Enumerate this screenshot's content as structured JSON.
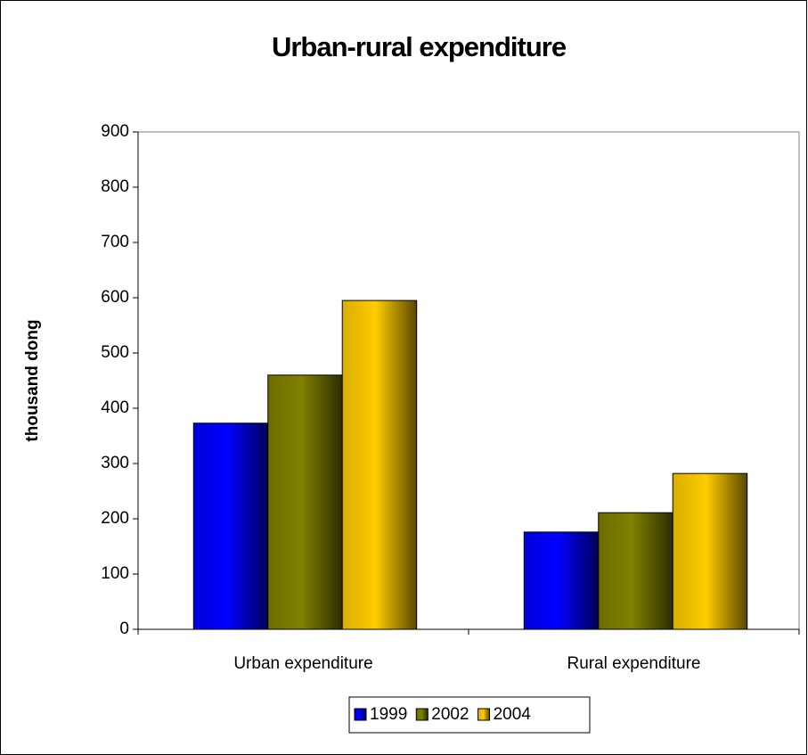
{
  "chart_data": {
    "type": "bar",
    "title": "Urban-rural expenditure",
    "y_label": "thousand dong",
    "categories": [
      "Urban expenditure",
      "Rural expenditure"
    ],
    "series": [
      {
        "name": "1999",
        "color": "#0000ff",
        "values": [
          373,
          176
        ]
      },
      {
        "name": "2002",
        "color": "#808000",
        "values": [
          460,
          211
        ]
      },
      {
        "name": "2004",
        "color": "#ffcc00",
        "values": [
          595,
          282
        ]
      }
    ],
    "ylim": [
      0,
      900
    ],
    "yticks": [
      0,
      100,
      200,
      300,
      400,
      500,
      600,
      700,
      800,
      900
    ],
    "legend": "bottom"
  }
}
